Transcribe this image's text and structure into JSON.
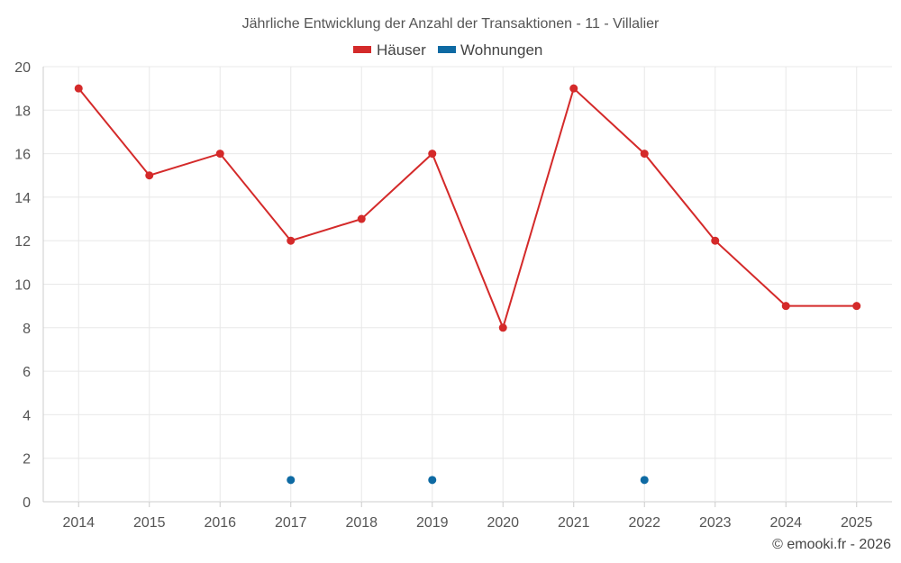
{
  "chart_data": {
    "type": "line",
    "title": "Jährliche Entwicklung der Anzahl der Transaktionen - 11 - Villalier",
    "categories": [
      "2014",
      "2015",
      "2016",
      "2017",
      "2018",
      "2019",
      "2020",
      "2021",
      "2022",
      "2023",
      "2024",
      "2025"
    ],
    "series": [
      {
        "name": "Häuser",
        "color": "#d42a2a",
        "values": [
          19,
          15,
          16,
          12,
          13,
          16,
          8,
          19,
          16,
          12,
          9,
          9
        ]
      },
      {
        "name": "Wohnungen",
        "color": "#0e6aa3",
        "values": [
          null,
          null,
          null,
          1,
          null,
          1,
          null,
          null,
          1,
          null,
          null,
          null
        ]
      }
    ],
    "ylim": [
      0,
      20
    ],
    "yticks": [
      0,
      2,
      4,
      6,
      8,
      10,
      12,
      14,
      16,
      18,
      20
    ],
    "xlabel": "",
    "ylabel": "",
    "grid": true,
    "legend": "top-center"
  },
  "credit": "© emooki.fr - 2026"
}
